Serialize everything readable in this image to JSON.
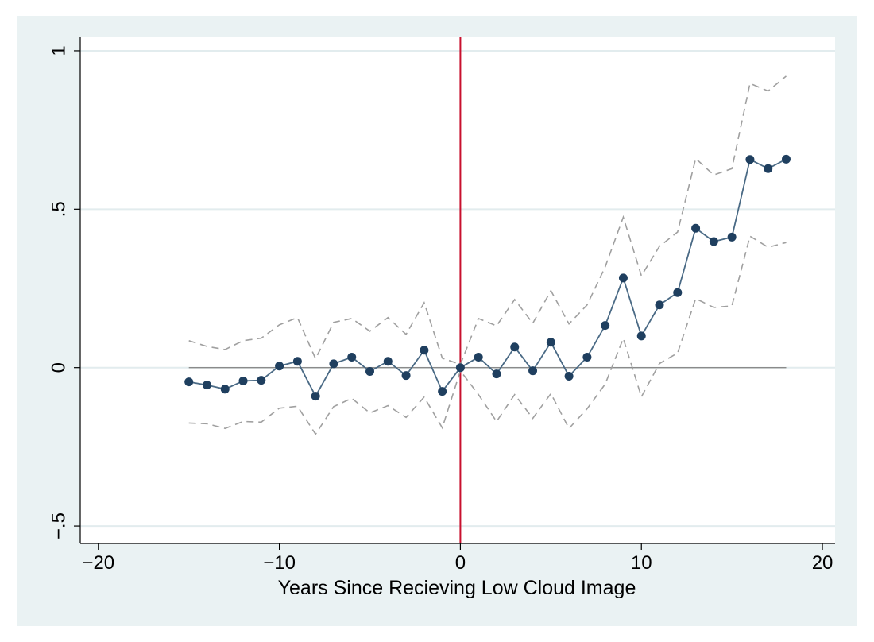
{
  "chart_data": {
    "type": "line",
    "title": "",
    "xlabel": "Years Since Recieving Low Cloud Image",
    "ylabel": "",
    "xlim": [
      -21,
      20.7
    ],
    "ylim": [
      -0.555,
      1.045
    ],
    "x_ticks": [
      -20,
      -10,
      0,
      10,
      20
    ],
    "x_tick_labels": [
      "−20",
      "−10",
      "0",
      "10",
      "20"
    ],
    "y_ticks": [
      -0.5,
      0,
      0.5,
      1
    ],
    "y_tick_labels": [
      "−.5",
      "0",
      ".5",
      "1"
    ],
    "grid": true,
    "reference_line_x": 0,
    "reference_line_color": "#c8102e",
    "zero_line_range": [
      -15,
      18
    ],
    "series": [
      {
        "role": "estimate",
        "style": "solid-with-markers",
        "color": "#1f3f5f",
        "x": [
          -15,
          -14,
          -13,
          -12,
          -11,
          -10,
          -9,
          -8,
          -7,
          -6,
          -5,
          -4,
          -3,
          -2,
          -1,
          0,
          1,
          2,
          3,
          4,
          5,
          6,
          7,
          8,
          9,
          10,
          11,
          12,
          13,
          14,
          15,
          16,
          17,
          18
        ],
        "values": [
          -0.045,
          -0.055,
          -0.068,
          -0.042,
          -0.04,
          0.005,
          0.02,
          -0.09,
          0.012,
          0.033,
          -0.012,
          0.02,
          -0.025,
          0.055,
          -0.075,
          0.0,
          0.033,
          -0.02,
          0.065,
          -0.01,
          0.08,
          -0.027,
          0.033,
          0.133,
          0.283,
          0.1,
          0.198,
          0.237,
          0.44,
          0.398,
          0.412,
          0.657,
          0.628,
          0.658
        ]
      },
      {
        "role": "upper-ci",
        "style": "dashed",
        "color": "#a0a0a0",
        "x": [
          -15,
          -14,
          -13,
          -12,
          -11,
          -10,
          -9,
          -8,
          -7,
          -6,
          -5,
          -4,
          -3,
          -2,
          -1,
          0,
          1,
          2,
          3,
          4,
          5,
          6,
          7,
          8,
          9,
          10,
          11,
          12,
          13,
          14,
          15,
          16,
          17,
          18
        ],
        "values": [
          0.085,
          0.067,
          0.057,
          0.085,
          0.093,
          0.135,
          0.158,
          0.028,
          0.143,
          0.155,
          0.115,
          0.158,
          0.105,
          0.205,
          0.03,
          0.01,
          0.155,
          0.132,
          0.215,
          0.14,
          0.243,
          0.138,
          0.198,
          0.318,
          0.475,
          0.29,
          0.383,
          0.428,
          0.66,
          0.608,
          0.628,
          0.897,
          0.873,
          0.92
        ]
      },
      {
        "role": "lower-ci",
        "style": "dashed",
        "color": "#a0a0a0",
        "x": [
          -15,
          -14,
          -13,
          -12,
          -11,
          -10,
          -9,
          -8,
          -7,
          -6,
          -5,
          -4,
          -3,
          -2,
          -1,
          0,
          1,
          2,
          3,
          4,
          5,
          6,
          7,
          8,
          9,
          10,
          11,
          12,
          13,
          14,
          15,
          16,
          17,
          18
        ],
        "values": [
          -0.175,
          -0.177,
          -0.192,
          -0.17,
          -0.172,
          -0.128,
          -0.122,
          -0.21,
          -0.123,
          -0.097,
          -0.143,
          -0.12,
          -0.157,
          -0.093,
          -0.19,
          -0.01,
          -0.085,
          -0.17,
          -0.085,
          -0.16,
          -0.082,
          -0.192,
          -0.13,
          -0.052,
          0.092,
          -0.092,
          0.013,
          0.046,
          0.218,
          0.19,
          0.195,
          0.415,
          0.38,
          0.395
        ]
      }
    ]
  }
}
